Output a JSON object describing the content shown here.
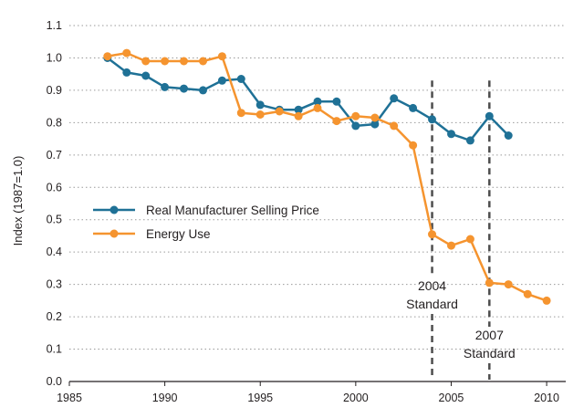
{
  "chart_data": {
    "type": "line",
    "xlabel": "",
    "ylabel": "Index (1987=1.0)",
    "xlim": [
      1985,
      2011
    ],
    "ylim": [
      0,
      1.1
    ],
    "x_ticks": [
      "1985",
      "1990",
      "1995",
      "2000",
      "2005",
      "2010"
    ],
    "y_ticks": [
      "0.0",
      "0.1",
      "0.2",
      "0.3",
      "0.4",
      "0.5",
      "0.6",
      "0.7",
      "0.8",
      "0.9",
      "1.0",
      "1.1"
    ],
    "grid": "horizontal dotted",
    "legend_position": "middle-left",
    "series": [
      {
        "name": "Real Manufacturer Selling Price",
        "color": "#1f7196",
        "points": [
          [
            1987,
            1.0
          ],
          [
            1988,
            0.955
          ],
          [
            1989,
            0.945
          ],
          [
            1990,
            0.91
          ],
          [
            1991,
            0.905
          ],
          [
            1992,
            0.9
          ],
          [
            1993,
            0.93
          ],
          [
            1994,
            0.935
          ],
          [
            1995,
            0.855
          ],
          [
            1996,
            0.84
          ],
          [
            1997,
            0.84
          ],
          [
            1998,
            0.865
          ],
          [
            1999,
            0.865
          ],
          [
            2000,
            0.79
          ],
          [
            2001,
            0.795
          ],
          [
            2002,
            0.875
          ],
          [
            2003,
            0.845
          ],
          [
            2004,
            0.81
          ],
          [
            2005,
            0.765
          ],
          [
            2006,
            0.745
          ],
          [
            2007,
            0.82
          ],
          [
            2008,
            0.76
          ]
        ]
      },
      {
        "name": "Energy Use",
        "color": "#f5942f",
        "points": [
          [
            1987,
            1.005
          ],
          [
            1988,
            1.015
          ],
          [
            1989,
            0.99
          ],
          [
            1990,
            0.99
          ],
          [
            1991,
            0.99
          ],
          [
            1992,
            0.99
          ],
          [
            1993,
            1.005
          ],
          [
            1994,
            0.83
          ],
          [
            1995,
            0.825
          ],
          [
            1996,
            0.835
          ],
          [
            1997,
            0.82
          ],
          [
            1998,
            0.845
          ],
          [
            1999,
            0.805
          ],
          [
            2000,
            0.82
          ],
          [
            2001,
            0.815
          ],
          [
            2002,
            0.79
          ],
          [
            2003,
            0.73
          ],
          [
            2004,
            0.455
          ],
          [
            2005,
            0.42
          ],
          [
            2006,
            0.44
          ],
          [
            2007,
            0.305
          ],
          [
            2008,
            0.3
          ],
          [
            2009,
            0.27
          ],
          [
            2010,
            0.25
          ]
        ]
      }
    ],
    "annotations": [
      {
        "x": 2004,
        "line1": "2004",
        "line2": "Standard"
      },
      {
        "x": 2007,
        "line1": "2007",
        "line2": "Standard"
      }
    ]
  }
}
